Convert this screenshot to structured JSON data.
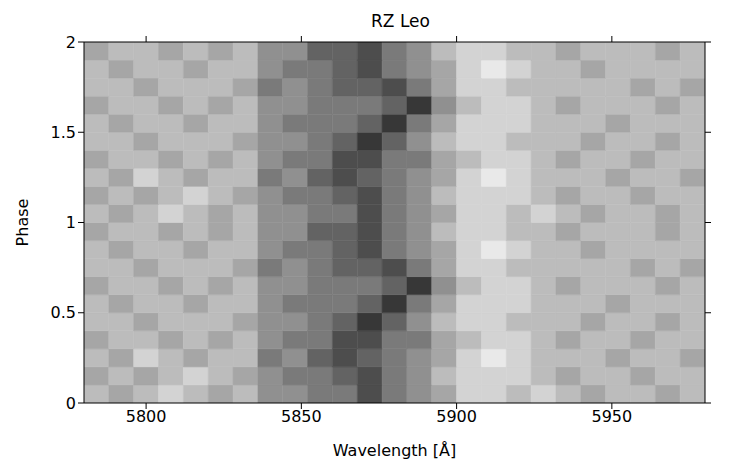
{
  "chart_data": {
    "type": "heatmap",
    "title": "RZ Leo",
    "x_label": "Wavelength [Å]",
    "y_label": "Phase",
    "xlim": [
      5780,
      5980
    ],
    "xticks": [
      5800,
      5850,
      5900,
      5950
    ],
    "ylim": [
      0,
      2
    ],
    "yticks": [
      0,
      0.5,
      1,
      1.5,
      2
    ],
    "x_bins": [
      5780,
      5788,
      5796,
      5804,
      5812,
      5820,
      5828,
      5836,
      5844,
      5852,
      5860,
      5868,
      5876,
      5884,
      5892,
      5900,
      5908,
      5916,
      5924,
      5932,
      5940,
      5948,
      5956,
      5964,
      5972,
      5980
    ],
    "y_bins": [
      0,
      0.1,
      0.2,
      0.3,
      0.4,
      0.5,
      0.6,
      0.7,
      0.8,
      0.9,
      1,
      1.1,
      1.2,
      1.3,
      1.4,
      1.5,
      1.6,
      1.7,
      1.8,
      1.9,
      2
    ],
    "zlim": [
      0,
      9
    ],
    "cells": [
      [
        3,
        4,
        3,
        2,
        3,
        4,
        3,
        5,
        5,
        6,
        6,
        8,
        6,
        5,
        4,
        2,
        2,
        3,
        2,
        3,
        4,
        3,
        3,
        4,
        3
      ],
      [
        4,
        3,
        4,
        3,
        2,
        3,
        4,
        5,
        6,
        6,
        7,
        8,
        6,
        5,
        3,
        2,
        2,
        2,
        3,
        4,
        3,
        3,
        4,
        3,
        3
      ],
      [
        3,
        4,
        2,
        3,
        4,
        3,
        3,
        6,
        5,
        7,
        8,
        7,
        6,
        5,
        4,
        2,
        1,
        2,
        3,
        3,
        3,
        4,
        3,
        3,
        4
      ],
      [
        4,
        3,
        3,
        4,
        3,
        4,
        3,
        5,
        6,
        6,
        8,
        8,
        6,
        6,
        4,
        3,
        2,
        2,
        3,
        4,
        3,
        3,
        4,
        3,
        3
      ],
      [
        3,
        3,
        4,
        3,
        3,
        3,
        4,
        5,
        5,
        6,
        7,
        9,
        7,
        5,
        3,
        2,
        2,
        3,
        3,
        3,
        4,
        3,
        3,
        4,
        3
      ],
      [
        3,
        4,
        3,
        3,
        4,
        3,
        3,
        5,
        6,
        6,
        6,
        7,
        9,
        6,
        4,
        2,
        2,
        2,
        3,
        3,
        3,
        4,
        3,
        3,
        3
      ],
      [
        4,
        3,
        3,
        4,
        3,
        4,
        3,
        5,
        5,
        6,
        6,
        6,
        7,
        9,
        5,
        3,
        2,
        2,
        3,
        4,
        3,
        3,
        3,
        4,
        3
      ],
      [
        3,
        3,
        4,
        3,
        3,
        3,
        4,
        6,
        5,
        6,
        7,
        7,
        8,
        6,
        4,
        2,
        2,
        3,
        3,
        3,
        3,
        3,
        4,
        3,
        4
      ],
      [
        3,
        4,
        3,
        3,
        4,
        3,
        3,
        5,
        6,
        6,
        7,
        8,
        6,
        5,
        4,
        2,
        1,
        2,
        3,
        3,
        4,
        3,
        3,
        3,
        3
      ],
      [
        4,
        3,
        3,
        4,
        3,
        4,
        3,
        5,
        5,
        7,
        7,
        8,
        6,
        5,
        3,
        2,
        2,
        3,
        3,
        4,
        3,
        3,
        3,
        4,
        3
      ],
      [
        3,
        4,
        3,
        2,
        3,
        4,
        3,
        5,
        5,
        6,
        6,
        8,
        6,
        5,
        4,
        2,
        2,
        3,
        2,
        3,
        4,
        3,
        3,
        4,
        3
      ],
      [
        4,
        3,
        4,
        3,
        2,
        3,
        4,
        5,
        6,
        6,
        7,
        8,
        6,
        5,
        3,
        2,
        2,
        2,
        3,
        4,
        3,
        3,
        4,
        3,
        3
      ],
      [
        3,
        4,
        2,
        3,
        4,
        3,
        3,
        6,
        5,
        7,
        8,
        7,
        6,
        5,
        4,
        2,
        1,
        2,
        3,
        3,
        3,
        4,
        3,
        3,
        4
      ],
      [
        4,
        3,
        3,
        4,
        3,
        4,
        3,
        5,
        6,
        6,
        8,
        8,
        6,
        6,
        4,
        3,
        2,
        2,
        3,
        4,
        3,
        3,
        4,
        3,
        3
      ],
      [
        3,
        3,
        4,
        3,
        3,
        3,
        4,
        5,
        5,
        6,
        7,
        9,
        7,
        5,
        3,
        2,
        2,
        3,
        3,
        3,
        4,
        3,
        3,
        4,
        3
      ],
      [
        3,
        4,
        3,
        3,
        4,
        3,
        3,
        5,
        6,
        6,
        6,
        7,
        9,
        6,
        4,
        2,
        2,
        2,
        3,
        3,
        3,
        4,
        3,
        3,
        3
      ],
      [
        4,
        3,
        3,
        4,
        3,
        4,
        3,
        5,
        5,
        6,
        6,
        6,
        7,
        9,
        5,
        3,
        2,
        2,
        3,
        4,
        3,
        3,
        3,
        4,
        3
      ],
      [
        3,
        3,
        4,
        3,
        3,
        3,
        4,
        6,
        5,
        6,
        7,
        7,
        8,
        6,
        4,
        2,
        2,
        3,
        3,
        3,
        3,
        3,
        4,
        3,
        4
      ],
      [
        3,
        4,
        3,
        3,
        4,
        3,
        3,
        5,
        6,
        6,
        7,
        8,
        6,
        5,
        4,
        2,
        1,
        2,
        3,
        3,
        4,
        3,
        3,
        3,
        3
      ],
      [
        4,
        3,
        3,
        4,
        3,
        4,
        3,
        5,
        5,
        7,
        7,
        8,
        6,
        5,
        3,
        2,
        2,
        3,
        3,
        4,
        3,
        3,
        3,
        4,
        3
      ]
    ]
  }
}
